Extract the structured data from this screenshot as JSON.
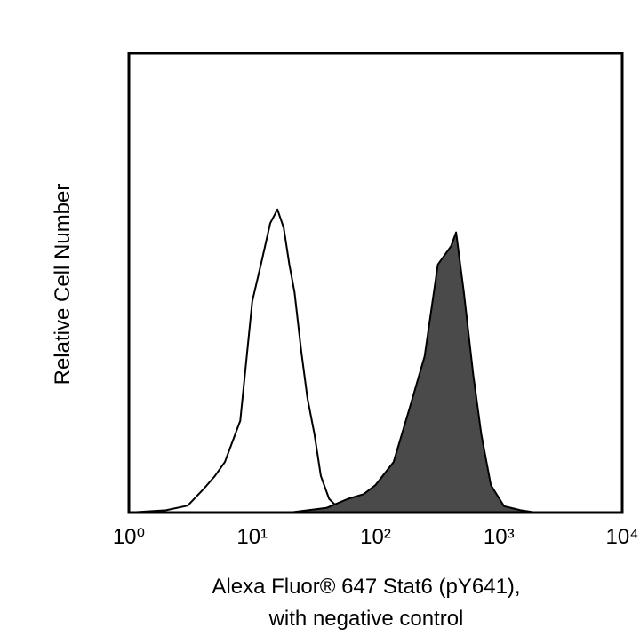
{
  "chart_data": {
    "type": "histogram-overlay",
    "ylabel": "Relative Cell Number",
    "xlabel": [
      "Alexa Fluor® 647 Stat6 (pY641),",
      "with negative control"
    ],
    "xlim": [
      1,
      10000
    ],
    "log_x": true,
    "xticks": [
      {
        "value": 1,
        "label": "10⁰"
      },
      {
        "value": 10,
        "label": "10¹"
      },
      {
        "value": 100,
        "label": "10²"
      },
      {
        "value": 1000,
        "label": "10³"
      },
      {
        "value": 10000,
        "label": "10⁴"
      }
    ],
    "ylim": [
      0,
      100
    ],
    "series": [
      {
        "color": "#000000",
        "fill": "none",
        "x": [
          1,
          2,
          3,
          4,
          5,
          6,
          8,
          10,
          12,
          14,
          16,
          18,
          20,
          22,
          25,
          28,
          32,
          36,
          42,
          50,
          70,
          100
        ],
        "values": [
          0,
          0.5,
          1.5,
          5,
          8,
          11,
          20,
          46,
          55,
          63,
          66,
          62,
          54,
          48,
          35,
          25,
          17,
          8,
          3,
          1,
          0.5,
          0
        ]
      },
      {
        "color": "#000000",
        "fill": "#4a4a4a",
        "x": [
          20,
          40,
          60,
          80,
          100,
          140,
          190,
          250,
          320,
          410,
          450,
          520,
          620,
          720,
          860,
          1100,
          1500,
          2000,
          4000
        ],
        "values": [
          0,
          1,
          3,
          4,
          6,
          11,
          23,
          34,
          54,
          58,
          61,
          48,
          30,
          17,
          6,
          1.4,
          0.5,
          0,
          0
        ]
      }
    ]
  }
}
